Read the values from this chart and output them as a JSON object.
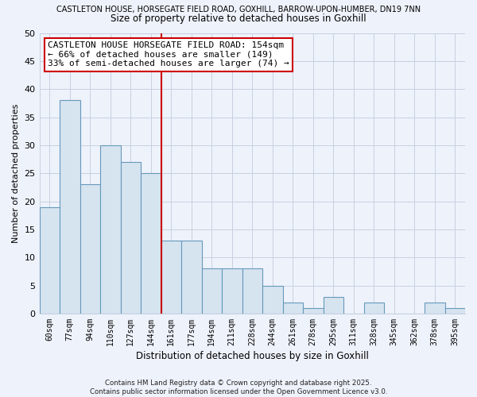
{
  "title_line1": "CASTLETON HOUSE, HORSEGATE FIELD ROAD, GOXHILL, BARROW-UPON-HUMBER, DN19 7NN",
  "title_line2": "Size of property relative to detached houses in Goxhill",
  "xlabel": "Distribution of detached houses by size in Goxhill",
  "ylabel": "Number of detached properties",
  "bar_labels": [
    "60sqm",
    "77sqm",
    "94sqm",
    "110sqm",
    "127sqm",
    "144sqm",
    "161sqm",
    "177sqm",
    "194sqm",
    "211sqm",
    "228sqm",
    "244sqm",
    "261sqm",
    "278sqm",
    "295sqm",
    "311sqm",
    "328sqm",
    "345sqm",
    "362sqm",
    "378sqm",
    "395sqm"
  ],
  "bar_values": [
    19,
    38,
    23,
    30,
    27,
    25,
    13,
    13,
    8,
    8,
    8,
    5,
    2,
    1,
    3,
    0,
    2,
    0,
    0,
    2,
    1
  ],
  "bar_color": "#d6e4f0",
  "bar_edge_color": "#6699bb",
  "vline_x": 6,
  "vline_color": "#cc0000",
  "ylim": [
    0,
    50
  ],
  "yticks": [
    0,
    5,
    10,
    15,
    20,
    25,
    30,
    35,
    40,
    45,
    50
  ],
  "annotation_title": "CASTLETON HOUSE HORSEGATE FIELD ROAD: 154sqm",
  "annotation_line1": "← 66% of detached houses are smaller (149)",
  "annotation_line2": "33% of semi-detached houses are larger (74) →",
  "bg_color": "#eef2fb",
  "grid_color": "#c8d0e0",
  "footer1": "Contains HM Land Registry data © Crown copyright and database right 2025.",
  "footer2": "Contains public sector information licensed under the Open Government Licence v3.0."
}
